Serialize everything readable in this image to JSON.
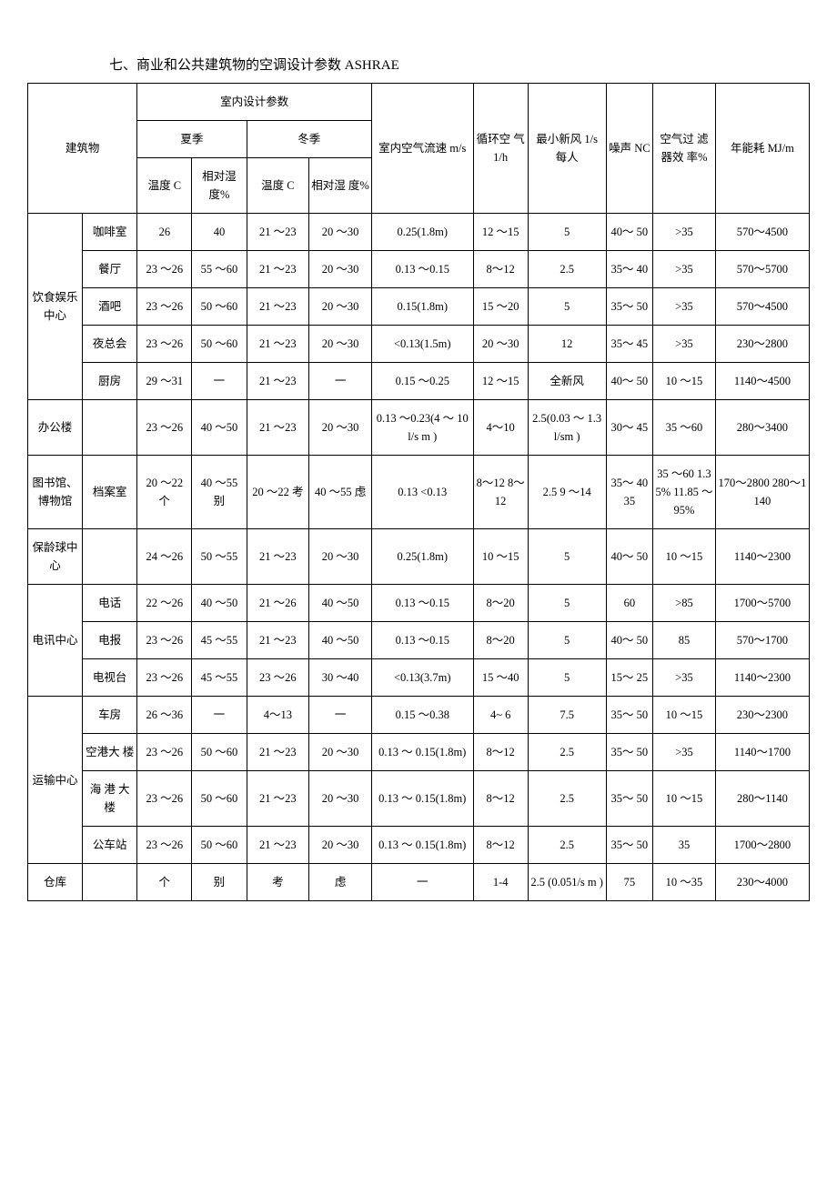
{
  "title": "七、商业和公共建筑物的空调设计参数 ASHRAE",
  "hdr": {
    "building": "建筑物",
    "indoor_params": "室内设计参数",
    "summer": "夏季",
    "winter": "冬季",
    "temp": "温度 C",
    "rh": "相对湿 度%",
    "rh2": "相对湿 度%",
    "air_speed": "室内空气流速 m/s",
    "circ_air": "循环空 气 1/h",
    "fresh_air": "最小新风 1/s 每人",
    "noise": "噪声 NC",
    "filter": "空气过 滤 器效 率%",
    "energy": "年能耗 MJ/m"
  },
  "g1": {
    "cat": "饮食娱乐 中心",
    "r1": {
      "sub": "咖啡室",
      "st": "26",
      "sh": "40",
      "wt": "21 ～23",
      "wh": "20 ～30",
      "air": "0.25(1.8m)",
      "circ": "12 ～15",
      "fresh": "5",
      "noise": "40～ 50",
      "filt": ">35",
      "energy": "570～4500"
    },
    "r2": {
      "sub": "餐厅",
      "st": "23 ～26",
      "sh": "55 ～60",
      "wt": "21 ～23",
      "wh": "20 ～30",
      "air": "0.13 ～0.15",
      "circ": "8～12",
      "fresh": "2.5",
      "noise": "35～ 40",
      "filt": ">35",
      "energy": "570～5700"
    },
    "r3": {
      "sub": "酒吧",
      "st": "23 ～26",
      "sh": "50 ～60",
      "wt": "21 ～23",
      "wh": "20 ～30",
      "air": "0.15(1.8m)",
      "circ": "15 ～20",
      "fresh": "5",
      "noise": "35～ 50",
      "filt": ">35",
      "energy": "570～4500"
    },
    "r4": {
      "sub": "夜总会",
      "st": "23 ～26",
      "sh": "50 ～60",
      "wt": "21 ～23",
      "wh": "20 ～30",
      "air": "<0.13(1.5m)",
      "circ": "20 ～30",
      "fresh": "12",
      "noise": "35～ 45",
      "filt": ">35",
      "energy": "230～2800"
    },
    "r5": {
      "sub": "厨房",
      "st": "29 ～31",
      "sh": "一",
      "wt": "21 ～23",
      "wh": "一",
      "air": "0.15 ～0.25",
      "circ": "12 ～15",
      "fresh": "全新风",
      "noise": "40～ 50",
      "filt": "10 ～15",
      "energy": "1140～4500"
    }
  },
  "g2": {
    "cat": "办公楼",
    "r1": {
      "sub": "",
      "st": "23 ～26",
      "sh": "40 ～50",
      "wt": "21 ～23",
      "wh": "20 ～30",
      "air": "0.13 ～0.23(4 ～ 10l/s m )",
      "circ": "4～10",
      "fresh": "2.5(0.03 ～ 1.3l/sm )",
      "noise": "30～ 45",
      "filt": "35 ～60",
      "energy": "280～3400"
    }
  },
  "g3": {
    "cat": "图书馆、 博物馆",
    "r1": {
      "sub": "档案室",
      "st": "20 ～22 个",
      "sh": "40 ～55 别",
      "wt": "20 ～22 考",
      "wh": "40 ～55 虑",
      "air": "0.13 <0.13",
      "circ": "8～12 8～12",
      "fresh": "2.5 9 ～14",
      "noise": "35～ 40 35",
      "filt": "35 ～60 1.35% 11.85 ～ 95%",
      "energy": "170～2800 280～1140"
    }
  },
  "g4": {
    "cat": "保龄球中 心",
    "r1": {
      "sub": "",
      "st": "24 ～26",
      "sh": "50 ～55",
      "wt": "21 ～23",
      "wh": "20 ～30",
      "air": "0.25(1.8m)",
      "circ": "10 ～15",
      "fresh": "5",
      "noise": "40～ 50",
      "filt": "10 ～15",
      "energy": "1140～2300"
    }
  },
  "g5": {
    "cat": "电讯中心",
    "r1": {
      "sub": "电话",
      "st": "22 ～26",
      "sh": "40 ～50",
      "wt": "21 ～26",
      "wh": "40 ～50",
      "air": "0.13 ～0.15",
      "circ": "8～20",
      "fresh": "5",
      "noise": "60",
      "filt": ">85",
      "energy": "1700～5700"
    },
    "r2": {
      "sub": "电报",
      "st": "23 ～26",
      "sh": "45 ～55",
      "wt": "21 ～23",
      "wh": "40 ～50",
      "air": "0.13 ～0.15",
      "circ": "8～20",
      "fresh": "5",
      "noise": "40～ 50",
      "filt": "85",
      "energy": "570～1700"
    },
    "r3": {
      "sub": "电视台",
      "st": "23 ～26",
      "sh": "45 ～55",
      "wt": "23 ～26",
      "wh": "30 ～40",
      "air": "<0.13(3.7m)",
      "circ": "15 ～40",
      "fresh": "5",
      "noise": "15～ 25",
      "filt": ">35",
      "energy": "1140～2300"
    }
  },
  "g6": {
    "cat": "运输中心",
    "r1": {
      "sub": "车房",
      "st": "26 ～36",
      "sh": "一",
      "wt": "4～13",
      "wh": "一",
      "air": "0.15 ～0.38",
      "circ": "4~ 6",
      "fresh": "7.5",
      "noise": "35～ 50",
      "filt": "10 ～15",
      "energy": "230～2300"
    },
    "r2": {
      "sub": "空港大 楼",
      "st": "23 ～26",
      "sh": "50 ～60",
      "wt": "21 ～23",
      "wh": "20 ～30",
      "air": "0.13 ～ 0.15(1.8m)",
      "circ": "8～12",
      "fresh": "2.5",
      "noise": "35～ 50",
      "filt": ">35",
      "energy": "1140～1700"
    },
    "r3": {
      "sub": "海 港 大 楼",
      "st": "23 ～26",
      "sh": "50 ～60",
      "wt": "21 ～23",
      "wh": "20 ～30",
      "air": "0.13 ～ 0.15(1.8m)",
      "circ": "8～12",
      "fresh": "2.5",
      "noise": "35～ 50",
      "filt": "10 ～15",
      "energy": "280～1140"
    },
    "r4": {
      "sub": "公车站",
      "st": "23 ～26",
      "sh": "50 ～60",
      "wt": "21 ～23",
      "wh": "20 ～30",
      "air": "0.13 ～ 0.15(1.8m)",
      "circ": "8～12",
      "fresh": "2.5",
      "noise": "35～ 50",
      "filt": "35",
      "energy": "1700～2800"
    }
  },
  "g7": {
    "cat": "仓库",
    "r1": {
      "sub": "",
      "st": "个",
      "sh": "别",
      "wt": "考",
      "wh": "虑",
      "air": "一",
      "circ": "1-4",
      "fresh": "2.5 (0.051/s m )",
      "noise": "75",
      "filt": "10 ～35",
      "energy": "230～4000"
    }
  }
}
